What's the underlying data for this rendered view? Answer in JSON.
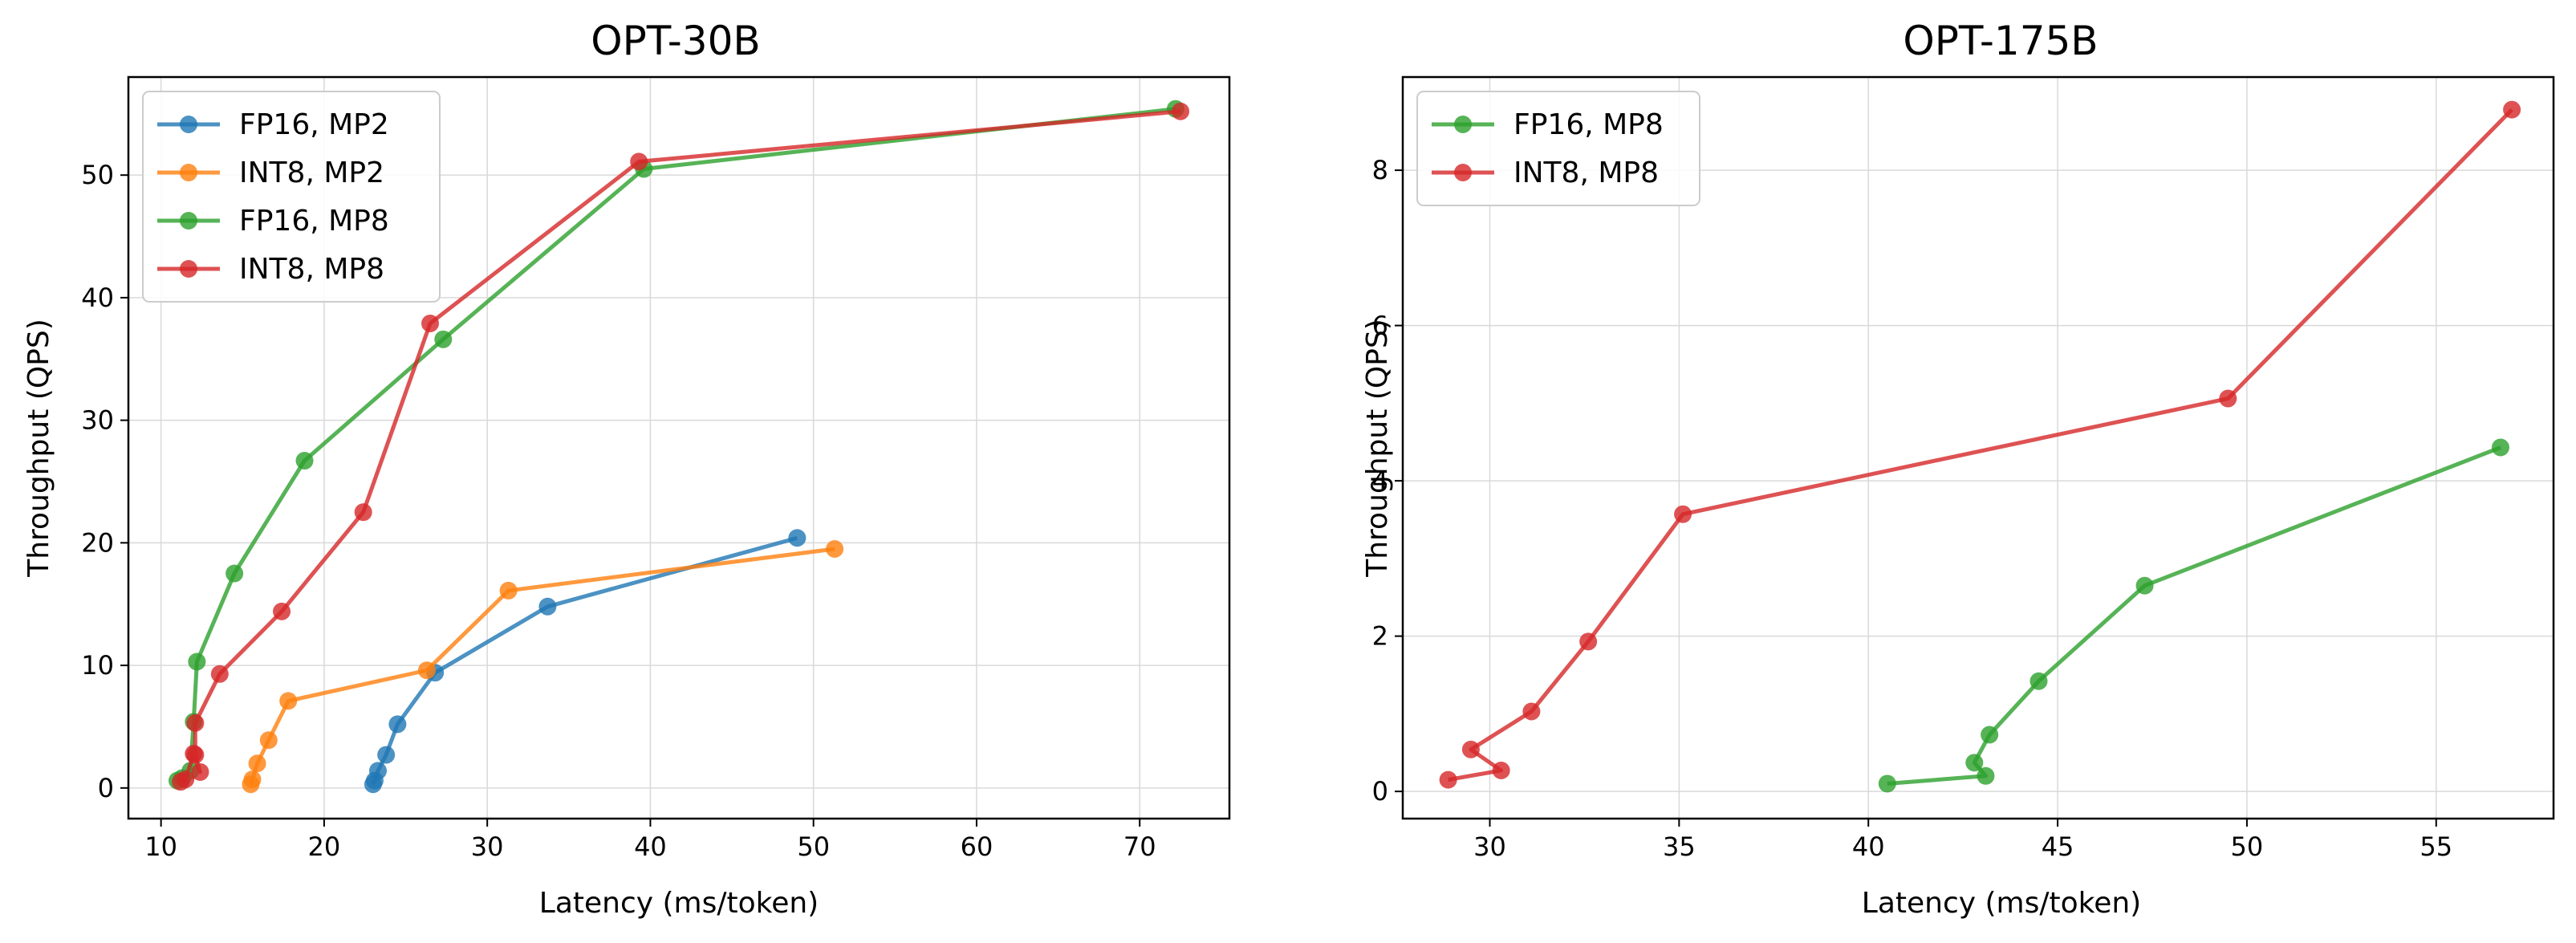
{
  "chart_data": [
    {
      "type": "line",
      "title": "OPT-30B",
      "xlabel": "Latency (ms/token)",
      "ylabel": "Throughput (QPS)",
      "xlim": [
        8,
        75.5
      ],
      "ylim": [
        -2.5,
        58
      ],
      "xticks": [
        10,
        20,
        30,
        40,
        50,
        60,
        70
      ],
      "yticks": [
        0,
        10,
        20,
        30,
        40,
        50
      ],
      "grid": true,
      "legend_position": "top-left",
      "series": [
        {
          "name": "FP16, MP2",
          "color": "#1f77b4",
          "x": [
            23.0,
            23.1,
            23.3,
            23.8,
            24.5,
            26.8,
            33.7,
            49.0
          ],
          "y": [
            0.3,
            0.6,
            1.4,
            2.7,
            5.2,
            9.4,
            14.8,
            20.4
          ]
        },
        {
          "name": "INT8, MP2",
          "color": "#ff7f0e",
          "x": [
            15.5,
            15.6,
            15.9,
            16.6,
            17.8,
            26.3,
            31.3,
            51.3
          ],
          "y": [
            0.3,
            0.7,
            2.0,
            3.9,
            7.1,
            9.6,
            16.1,
            19.5
          ]
        },
        {
          "name": "FP16, MP8",
          "color": "#2ca02c",
          "x": [
            11.0,
            11.3,
            11.8,
            12.0,
            12.2,
            14.5,
            18.8,
            27.3,
            39.6,
            72.2
          ],
          "y": [
            0.6,
            0.8,
            1.4,
            5.4,
            10.3,
            17.5,
            26.7,
            36.6,
            50.5,
            55.4
          ]
        },
        {
          "name": "INT8, MP8",
          "color": "#d62728",
          "x": [
            11.2,
            11.5,
            12.0,
            12.4,
            12.1,
            12.1,
            13.6,
            17.4,
            22.4,
            26.5,
            39.3,
            72.5
          ],
          "y": [
            0.5,
            0.7,
            2.8,
            1.3,
            2.7,
            5.3,
            9.3,
            14.4,
            22.5,
            37.9,
            51.1,
            55.2
          ]
        }
      ]
    },
    {
      "type": "line",
      "title": "OPT-175B",
      "xlabel": "Latency (ms/token)",
      "ylabel": "Throughput (QPS)",
      "xlim": [
        27.7,
        58.1
      ],
      "ylim": [
        -0.35,
        9.2
      ],
      "xticks": [
        30,
        35,
        40,
        45,
        50,
        55
      ],
      "yticks": [
        0,
        2,
        4,
        6,
        8
      ],
      "grid": true,
      "legend_position": "top-left",
      "series": [
        {
          "name": "FP16, MP8",
          "color": "#2ca02c",
          "x": [
            40.5,
            43.1,
            42.8,
            43.2,
            44.5,
            47.3,
            56.7
          ],
          "y": [
            0.1,
            0.2,
            0.37,
            0.73,
            1.42,
            2.65,
            4.43
          ]
        },
        {
          "name": "INT8, MP8",
          "color": "#d62728",
          "x": [
            28.9,
            30.3,
            29.5,
            31.1,
            32.6,
            35.1,
            49.5,
            57.0
          ],
          "y": [
            0.15,
            0.27,
            0.54,
            1.03,
            1.93,
            3.57,
            5.06,
            8.78
          ]
        }
      ]
    }
  ]
}
